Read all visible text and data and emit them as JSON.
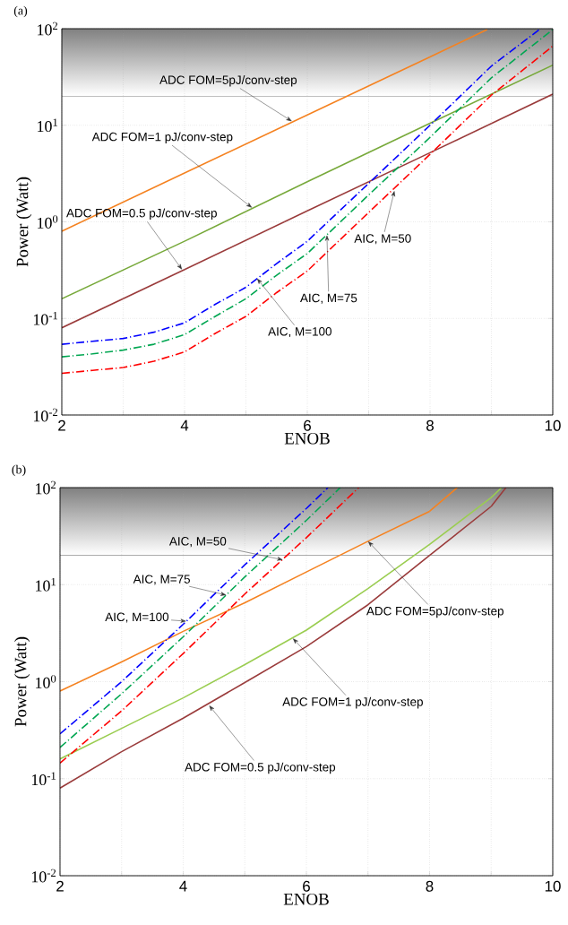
{
  "chart_data": [
    {
      "type": "line",
      "title": "(a)",
      "xlabel": "ENOB",
      "ylabel": "Power (Watt)",
      "log": "y",
      "grid": true,
      "xlim": [
        2,
        10
      ],
      "ylim": [
        0.01,
        100
      ],
      "xticks": [
        2,
        {
          "value": 3,
          "label": null
        },
        4,
        {
          "value": 5,
          "label": null
        },
        6,
        {
          "value": 7,
          "label": null
        },
        8,
        {
          "value": 9,
          "label": null
        },
        10
      ],
      "yticks": [
        {
          "value": 0.01,
          "label": "10$^{-2}$"
        },
        {
          "value": 0.1,
          "label": "10$^{-1}$"
        },
        {
          "value": 1,
          "label": "10$^{0}$"
        },
        {
          "value": 10,
          "label": "10$^{1}$"
        },
        {
          "value": 100,
          "label": "10$^{2}$"
        }
      ],
      "bands": [
        {
          "axis": "y",
          "from": 20,
          "to": 100,
          "color": "#808080"
        }
      ],
      "series": [
        {
          "color": "#f58220",
          "line_style": "solid",
          "x": [
            2,
            4,
            6,
            8,
            8.93
          ],
          "values": [
            0.8,
            3.2,
            12.8,
            51,
            98
          ]
        },
        {
          "color": "#77a93a",
          "line_style": "solid",
          "x": [
            2,
            4,
            6,
            8,
            10
          ],
          "values": [
            0.16,
            0.63,
            2.6,
            10.5,
            42
          ]
        },
        {
          "color": "#9a3b3b",
          "line_style": "solid",
          "x": [
            2,
            4,
            6,
            8,
            10
          ],
          "values": [
            0.08,
            0.32,
            1.3,
            5.2,
            21
          ]
        },
        {
          "color": "#0000ff",
          "line_style": "dashdot",
          "x": [
            2,
            2.5,
            3,
            3.5,
            4,
            4.5,
            5,
            5.5,
            6,
            7,
            8,
            9,
            9.8
          ],
          "values": [
            0.054,
            0.058,
            0.062,
            0.072,
            0.09,
            0.14,
            0.21,
            0.37,
            0.63,
            2.5,
            10,
            41,
            100
          ]
        },
        {
          "color": "#00a651",
          "line_style": "dashdot",
          "x": [
            2,
            2.5,
            3,
            3.5,
            4,
            4.5,
            5,
            5.5,
            6,
            7,
            8,
            9,
            10
          ],
          "values": [
            0.04,
            0.043,
            0.047,
            0.054,
            0.068,
            0.105,
            0.16,
            0.28,
            0.47,
            1.9,
            7.5,
            31,
            98
          ]
        },
        {
          "color": "#ff0000",
          "line_style": "dashdot",
          "x": [
            2,
            2.5,
            3,
            3.5,
            4,
            4.5,
            5,
            5.5,
            6,
            7,
            8,
            9,
            10
          ],
          "values": [
            0.027,
            0.029,
            0.031,
            0.036,
            0.045,
            0.07,
            0.105,
            0.185,
            0.31,
            1.25,
            5,
            20.5,
            66
          ]
        }
      ],
      "annotations": [
        {
          "text": "ADC FOM=5pJ/conv-step",
          "x": 5.75,
          "y": 11
        },
        {
          "text": "ADC FOM=1 pJ/conv-step",
          "x": 5.1,
          "y": 1.4
        },
        {
          "text": "ADC FOM=0.5 pJ/conv-step",
          "x": 3.96,
          "y": 0.32
        },
        {
          "text": "AIC, M=100",
          "x": 5.18,
          "y": 0.26
        },
        {
          "text": "AIC, M=75",
          "x": 6.32,
          "y": 0.73
        },
        {
          "text": "AIC, M=50",
          "x": 7.42,
          "y": 2.1
        }
      ]
    },
    {
      "type": "line",
      "title": "(b)",
      "xlabel": "ENOB",
      "ylabel": "Power (Watt)",
      "log": "y",
      "grid": true,
      "xlim": [
        2,
        10
      ],
      "ylim": [
        0.01,
        100
      ],
      "xticks": [
        2,
        {
          "value": 3,
          "label": null
        },
        4,
        {
          "value": 5,
          "label": null
        },
        6,
        {
          "value": 7,
          "label": null
        },
        8,
        {
          "value": 9,
          "label": null
        },
        10
      ],
      "yticks": [
        {
          "value": 0.01,
          "label": "10$^{-2}$"
        },
        {
          "value": 0.1,
          "label": "10$^{-1}$"
        },
        {
          "value": 1,
          "label": "10$^{0}$"
        },
        {
          "value": 10,
          "label": "10$^{1}$"
        },
        {
          "value": 100,
          "label": "10$^{2}$"
        }
      ],
      "bands": [
        {
          "axis": "y",
          "from": 20,
          "to": 100,
          "color": "#808080"
        }
      ],
      "series": [
        {
          "color": "#f58220",
          "line_style": "solid",
          "x": [
            2,
            3,
            4,
            5,
            6,
            7,
            8,
            8.45
          ],
          "values": [
            0.8,
            1.6,
            3.3,
            6.5,
            13.5,
            28,
            57,
            100
          ]
        },
        {
          "color": "#9acd50",
          "line_style": "solid",
          "x": [
            2,
            3,
            4,
            5,
            6,
            7,
            8,
            9,
            9.17
          ],
          "values": [
            0.16,
            0.33,
            0.68,
            1.5,
            3.4,
            9.1,
            26,
            79,
            100
          ]
        },
        {
          "color": "#9a3b3b",
          "line_style": "solid",
          "x": [
            2,
            3,
            4,
            5,
            6,
            7,
            8,
            9,
            9.24
          ],
          "values": [
            0.08,
            0.19,
            0.42,
            0.98,
            2.3,
            6.2,
            20,
            64,
            100
          ]
        },
        {
          "color": "#0000ff",
          "line_style": "dashdot",
          "x": [
            2,
            3,
            4,
            5,
            6,
            6.35
          ],
          "values": [
            0.29,
            1.0,
            3.9,
            16,
            61,
            100
          ]
        },
        {
          "color": "#00a651",
          "line_style": "dashdot",
          "x": [
            2,
            3,
            4,
            5,
            6,
            6.55
          ],
          "values": [
            0.21,
            0.75,
            2.9,
            12,
            46,
            100
          ]
        },
        {
          "color": "#ff0000",
          "line_style": "dashdot",
          "x": [
            2,
            3,
            4,
            5,
            6,
            6.85
          ],
          "values": [
            0.145,
            0.5,
            1.95,
            8,
            30.5,
            100
          ]
        }
      ],
      "annotations": [
        {
          "text": "AIC, M=50",
          "x": 5.62,
          "y": 18
        },
        {
          "text": "AIC, M=75",
          "x": 4.7,
          "y": 7.8
        },
        {
          "text": "AIC, M=100",
          "x": 4.05,
          "y": 4.2
        },
        {
          "text": "ADC FOM=5pJ/conv-step",
          "x": 7,
          "y": 28
        },
        {
          "text": "ADC FOM=1 pJ/conv-step",
          "x": 5.78,
          "y": 2.8
        },
        {
          "text": "ADC FOM=0.5 pJ/conv-step",
          "x": 4.42,
          "y": 0.57
        }
      ]
    }
  ]
}
